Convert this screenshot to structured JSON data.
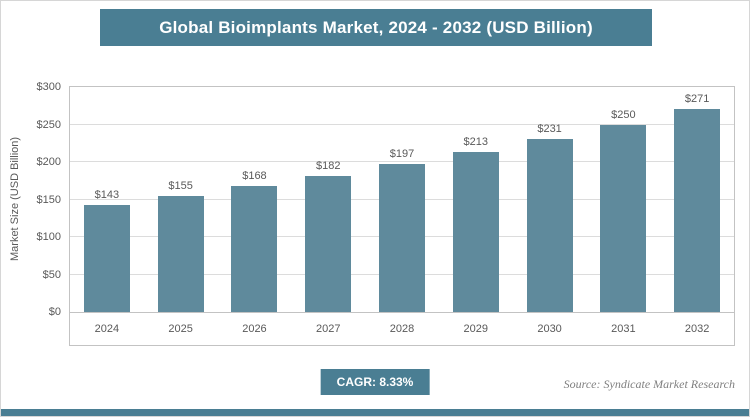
{
  "title": "Global Bioimplants Market, 2024 - 2032 (USD Billion)",
  "colors": {
    "accent": "#4a7e93",
    "bar": "#5f8a9c"
  },
  "footer": {
    "cagr_label": "CAGR: 8.33%",
    "source": "Source: Syndicate Market Research"
  },
  "chart_data": {
    "type": "bar",
    "title": "Global Bioimplants Market, 2024 - 2032 (USD Billion)",
    "categories": [
      "2024",
      "2025",
      "2026",
      "2027",
      "2028",
      "2029",
      "2030",
      "2031",
      "2032"
    ],
    "values": [
      143,
      155,
      168,
      182,
      197,
      213,
      231,
      250,
      271
    ],
    "value_labels": [
      "$143",
      "$155",
      "$168",
      "$182",
      "$197",
      "$213",
      "$231",
      "$250",
      "$271"
    ],
    "xlabel": "",
    "ylabel": "Market Size (USD Billion)",
    "ylim": [
      0,
      300
    ],
    "ytick_step": 50,
    "yticks": [
      "$0",
      "$50",
      "$100",
      "$150",
      "$200",
      "$250",
      "$300"
    ],
    "grid": true,
    "legend": "none",
    "bar_color": "#5f8a9c"
  }
}
